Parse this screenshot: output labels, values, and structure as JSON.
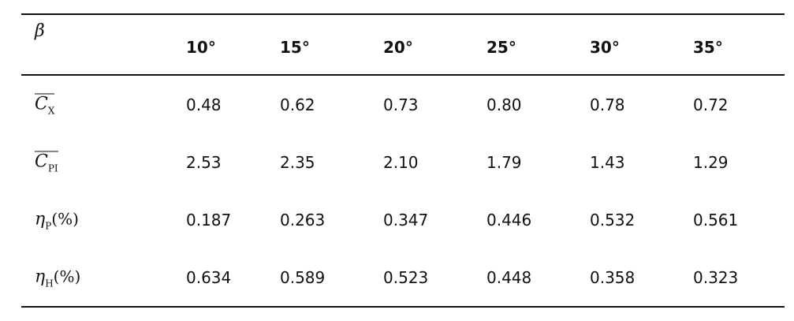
{
  "table": {
    "header": {
      "corner": "β",
      "columns": [
        "10°",
        "15°",
        "20°",
        "25°",
        "30°",
        "35°"
      ]
    },
    "rows": [
      {
        "label": {
          "symbol": "C",
          "subscript": "X",
          "overline": true
        },
        "cells": [
          "0.48",
          "0.62",
          "0.73",
          "0.80",
          "0.78",
          "0.72"
        ]
      },
      {
        "label": {
          "symbol": "C",
          "subscript": "PI",
          "overline": true
        },
        "cells": [
          "2.53",
          "2.35",
          "2.10",
          "1.79",
          "1.43",
          "1.29"
        ]
      },
      {
        "label": {
          "symbol": "η",
          "subscript": "P",
          "suffix": "(%)"
        },
        "cells": [
          "0.187",
          "0.263",
          "0.347",
          "0.446",
          "0.532",
          "0.561"
        ]
      },
      {
        "label": {
          "symbol": "η",
          "subscript": "H",
          "suffix": "(%)"
        },
        "cells": [
          "0.634",
          "0.589",
          "0.523",
          "0.448",
          "0.358",
          "0.323"
        ]
      }
    ]
  }
}
